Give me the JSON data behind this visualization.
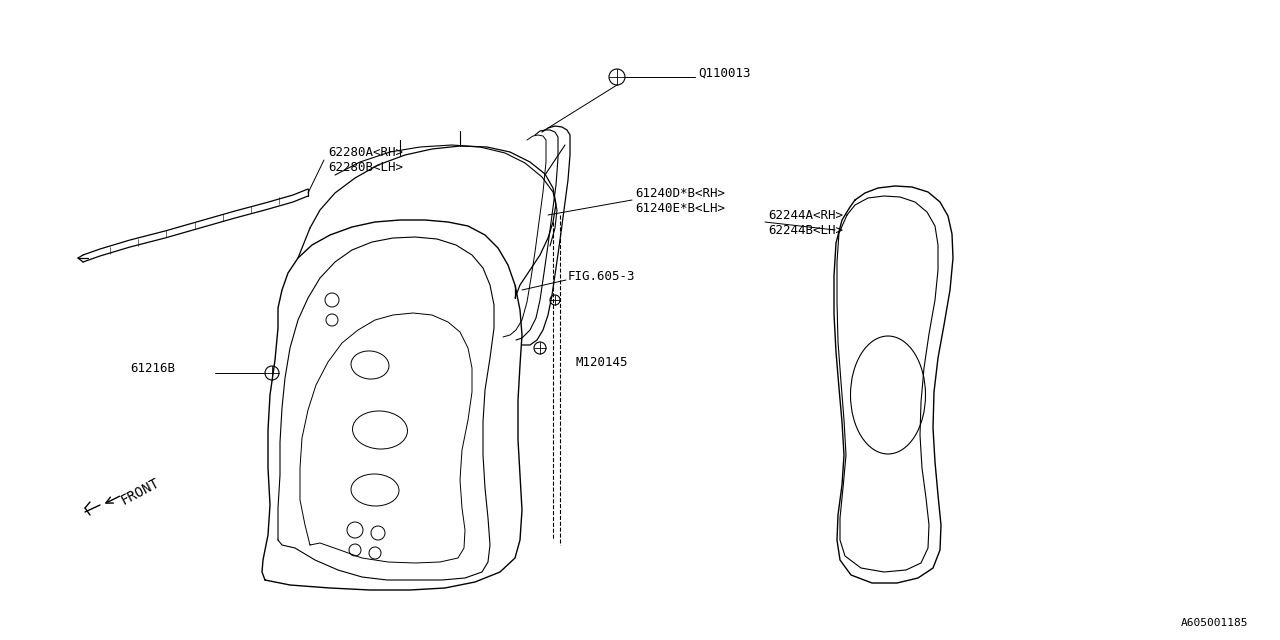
{
  "bg_color": "#ffffff",
  "lc": "#000000",
  "watermark": "A605001185",
  "font_size": 9,
  "labels": {
    "Q110013": [
      700,
      62,
      "Q110013"
    ],
    "62280A_RH": [
      330,
      148,
      "62280A<RH>"
    ],
    "62280B_LH": [
      330,
      163,
      "62280B<LH>"
    ],
    "61240D_B_RH": [
      638,
      192,
      "61240D*B<RH>"
    ],
    "61240E_B_LH": [
      638,
      207,
      "61240E*B<LH>"
    ],
    "62244A_RH": [
      768,
      218,
      "62244A<RH>"
    ],
    "62244B_LH": [
      768,
      233,
      "62244B<LH>"
    ],
    "FIG605_3": [
      572,
      280,
      "FIG.605-3"
    ],
    "61216B": [
      130,
      373,
      "61216B"
    ],
    "M120145": [
      575,
      365,
      "M120145"
    ],
    "FRONT": [
      155,
      488,
      "FRONT"
    ]
  }
}
